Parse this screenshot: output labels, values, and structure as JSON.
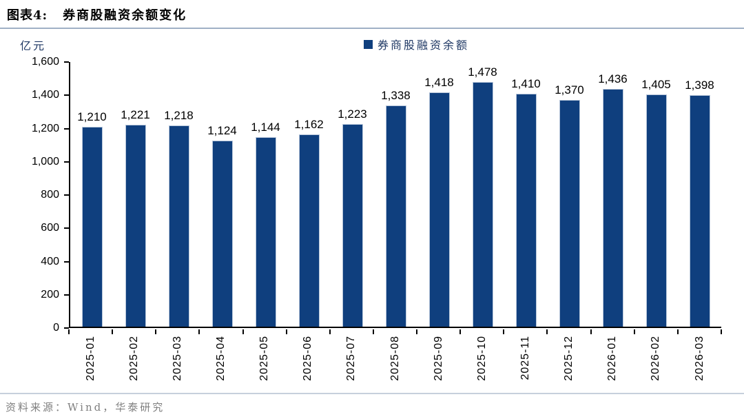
{
  "header": {
    "prefix": "图表4:",
    "title": "券商股融资余额变化"
  },
  "chart_data": {
    "type": "bar",
    "title": "券商股融资余额变化",
    "unit_label": "亿元",
    "legend": "券商股融资余额",
    "legend_position": "top-center",
    "grid": false,
    "categories": [
      "2025-01",
      "2025-02",
      "2025-03",
      "2025-04",
      "2025-05",
      "2025-06",
      "2025-07",
      "2025-08",
      "2025-09",
      "2025-10",
      "2025-11",
      "2025-12",
      "2026-01",
      "2026-02",
      "2026-03"
    ],
    "values": [
      1210,
      1221,
      1218,
      1124,
      1144,
      1162,
      1223,
      1338,
      1418,
      1478,
      1410,
      1370,
      1436,
      1405,
      1398
    ],
    "xlabel": "",
    "ylabel": "亿元",
    "ylim": [
      0,
      1600
    ],
    "yticks": [
      0,
      200,
      400,
      600,
      800,
      1000,
      1200,
      1400,
      1600
    ]
  },
  "colors": {
    "bar": "#0f3f7e",
    "bar_edge": "#b7c6da",
    "rule": "#9fb0c5",
    "divider": "#c6d0dc",
    "source_text": "#7f7f7f",
    "axis": "#000000",
    "navy_text": "#1f3864"
  },
  "footer": {
    "source": "资料来源：Wind，华泰研究"
  }
}
